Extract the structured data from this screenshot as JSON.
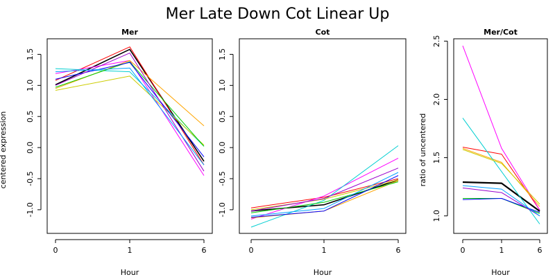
{
  "figure": {
    "title": "Mer Late Down Cot Linear Up"
  },
  "chart_data": [
    {
      "type": "line",
      "title": "Mer",
      "xlabel": "Hour",
      "ylabel": "centered expression",
      "categories": [
        "0",
        "1",
        "6"
      ],
      "x_ticks": [
        "0",
        "1",
        "6"
      ],
      "y_ticks": [
        "-1.0",
        "-0.5",
        "0.0",
        "0.5",
        "1.0",
        "1.5"
      ],
      "ylim": [
        -1.38,
        1.75
      ],
      "grid": false,
      "series": [
        {
          "color": "#000000",
          "width": 1.6,
          "values": [
            1.01,
            1.58,
            -0.22
          ]
        },
        {
          "color": "#ff0000",
          "width": 1,
          "values": [
            1.08,
            1.62,
            -0.28
          ]
        },
        {
          "color": "#ff00ff",
          "width": 1,
          "values": [
            1.19,
            1.4,
            -0.45
          ]
        },
        {
          "color": "#ffa500",
          "width": 1,
          "values": [
            0.95,
            1.4,
            0.35
          ]
        },
        {
          "color": "#00ced1",
          "width": 1,
          "values": [
            1.27,
            1.22,
            0.02
          ]
        },
        {
          "color": "#cccc00",
          "width": 1,
          "values": [
            0.92,
            1.15,
            0.04
          ]
        },
        {
          "color": "#00cc00",
          "width": 1,
          "values": [
            0.97,
            1.38,
            0.02
          ]
        },
        {
          "color": "#0000ff",
          "width": 1,
          "values": [
            1.1,
            1.37,
            -0.15
          ]
        },
        {
          "color": "#9900cc",
          "width": 1,
          "values": [
            1.0,
            1.52,
            -0.38
          ]
        },
        {
          "color": "#00a0ff",
          "width": 1,
          "values": [
            1.22,
            1.28,
            -0.28
          ]
        }
      ]
    },
    {
      "type": "line",
      "title": "Cot",
      "xlabel": "Hour",
      "ylabel": "",
      "categories": [
        "0",
        "1",
        "6"
      ],
      "x_ticks": [
        "0",
        "1",
        "6"
      ],
      "y_ticks": [
        "-1.0",
        "-0.5",
        "0.0",
        "0.5",
        "1.0",
        "1.5"
      ],
      "ylim": [
        -1.38,
        1.75
      ],
      "grid": false,
      "series": [
        {
          "color": "#000000",
          "width": 1.6,
          "values": [
            -1.02,
            -0.92,
            -0.52
          ]
        },
        {
          "color": "#ff0000",
          "width": 1,
          "values": [
            -0.97,
            -0.8,
            -0.5
          ]
        },
        {
          "color": "#ff00ff",
          "width": 1,
          "values": [
            -1.15,
            -0.78,
            -0.17
          ]
        },
        {
          "color": "#ffa500",
          "width": 1,
          "values": [
            -1.13,
            -1.02,
            -0.53
          ]
        },
        {
          "color": "#00ced1",
          "width": 1,
          "values": [
            -1.28,
            -0.85,
            0.03
          ]
        },
        {
          "color": "#cccc00",
          "width": 1,
          "values": [
            -1.0,
            -0.83,
            -0.52
          ]
        },
        {
          "color": "#00cc00",
          "width": 1,
          "values": [
            -1.05,
            -0.88,
            -0.55
          ]
        },
        {
          "color": "#0000ff",
          "width": 1,
          "values": [
            -1.12,
            -1.02,
            -0.45
          ]
        },
        {
          "color": "#9900cc",
          "width": 1,
          "values": [
            -1.02,
            -0.82,
            -0.33
          ]
        },
        {
          "color": "#00a0ff",
          "width": 1,
          "values": [
            -1.1,
            -0.98,
            -0.4
          ]
        }
      ]
    },
    {
      "type": "line",
      "title": "Mer/Cot",
      "xlabel": "Hour",
      "ylabel": "ratio of uncentered",
      "categories": [
        "0",
        "1",
        "6"
      ],
      "x_ticks": [
        "0",
        "1",
        "6"
      ],
      "y_ticks": [
        "1.0",
        "1.5",
        "2.0",
        "2.5"
      ],
      "ylim": [
        0.85,
        2.52
      ],
      "grid": false,
      "series": [
        {
          "color": "#000000",
          "width": 2.2,
          "values": [
            1.29,
            1.28,
            1.04
          ]
        },
        {
          "color": "#ff0000",
          "width": 1,
          "values": [
            1.59,
            1.53,
            1.05
          ]
        },
        {
          "color": "#ff00ff",
          "width": 1,
          "values": [
            2.46,
            1.58,
            1.05
          ]
        },
        {
          "color": "#ffa500",
          "width": 1,
          "values": [
            1.58,
            1.46,
            1.08
          ]
        },
        {
          "color": "#00ced1",
          "width": 1,
          "values": [
            1.84,
            1.38,
            0.93
          ]
        },
        {
          "color": "#cccc00",
          "width": 1,
          "values": [
            1.57,
            1.45,
            1.1
          ]
        },
        {
          "color": "#00cc00",
          "width": 1,
          "values": [
            1.15,
            1.15,
            1.02
          ]
        },
        {
          "color": "#0000ff",
          "width": 1,
          "values": [
            1.14,
            1.15,
            1.03
          ]
        },
        {
          "color": "#9900cc",
          "width": 1,
          "values": [
            1.24,
            1.2,
            1.0
          ]
        },
        {
          "color": "#00a0ff",
          "width": 1,
          "values": [
            1.26,
            1.23,
            1.0
          ]
        }
      ]
    }
  ]
}
